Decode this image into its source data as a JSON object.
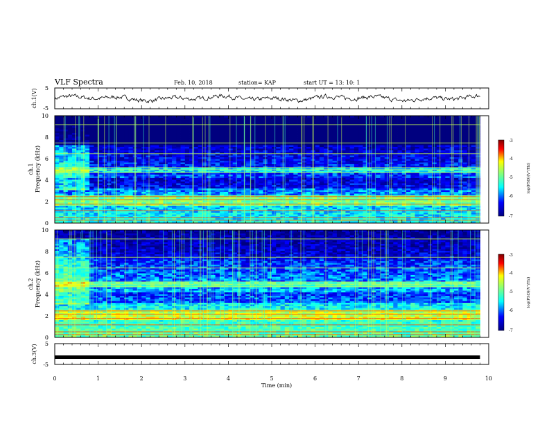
{
  "header": {
    "title": "VLF Spectra",
    "date": "Feb. 10, 2018",
    "station": "station= KAP",
    "start": "start  UT =   13: 10: 1"
  },
  "panels": {
    "ch1_wave": {
      "ylabel": "ch.1(V)",
      "yticks": [
        "5",
        "-5"
      ]
    },
    "ch1_spec": {
      "ylabel_top": "ch.1",
      "ylabel": "Frequency  (kHz)",
      "yticks": [
        "0",
        "2",
        "4",
        "6",
        "8",
        "10"
      ]
    },
    "ch2_spec": {
      "ylabel_top": "ch.2",
      "ylabel": "Frequency  (kHz)",
      "yticks": [
        "0",
        "2",
        "4",
        "6",
        "8",
        "10"
      ]
    },
    "ch3_wave": {
      "ylabel": "ch.3(V)",
      "yticks": [
        "5",
        "-5"
      ]
    }
  },
  "xaxis": {
    "label": "Time  (min)",
    "ticks": [
      "0",
      "1",
      "2",
      "3",
      "4",
      "5",
      "6",
      "7",
      "8",
      "9",
      "10"
    ]
  },
  "colorbar": {
    "label": "log(PSD)(V²/Hz)",
    "ticks": [
      "-3",
      "-4",
      "-5",
      "-6",
      "-7"
    ]
  },
  "chart_data": [
    {
      "type": "line",
      "title": "VLF Spectra",
      "ylabel": "ch.1(V)",
      "xlabel": "Time  (min)",
      "xlim": [
        0,
        10
      ],
      "ylim": [
        -5,
        5
      ],
      "note_series": "noisy waveform oscillating roughly between -2 and 2 V over 0 to 9.8 min"
    },
    {
      "type": "heatmap",
      "ylabel": "Frequency  (kHz)",
      "xlabel": "Time  (min)",
      "xlim": [
        0,
        10
      ],
      "ylim": [
        0,
        10
      ],
      "data_extent_minutes": [
        0,
        9.8
      ],
      "color_scale": {
        "label": "log(PSD)(V²/Hz)",
        "min": -7,
        "max": -3,
        "palette": [
          "#00007f",
          "#0000ff",
          "#00ffff",
          "#80ff80",
          "#ffff00",
          "#ff0000",
          "#7f0000"
        ]
      }
    },
    {
      "type": "heatmap",
      "ylabel": "Frequency  (kHz)",
      "xlabel": "Time  (min)",
      "xlim": [
        0,
        10
      ],
      "ylim": [
        0,
        10
      ],
      "data_extent_minutes": [
        0,
        9.8
      ],
      "color_scale": {
        "label": "log(PSD)(V²/Hz)",
        "min": -7,
        "max": -3,
        "palette": [
          "#00007f",
          "#0000ff",
          "#00ffff",
          "#80ff80",
          "#ffff00",
          "#ff0000",
          "#7f0000"
        ]
      }
    },
    {
      "type": "line",
      "ylabel": "ch.3(V)",
      "xlabel": "Time  (min)",
      "xlim": [
        0,
        10
      ],
      "ylim": [
        -5,
        5
      ],
      "series": [
        {
          "x": [
            0,
            9.8
          ],
          "values": [
            -1.5,
            -1.5
          ]
        }
      ]
    }
  ]
}
